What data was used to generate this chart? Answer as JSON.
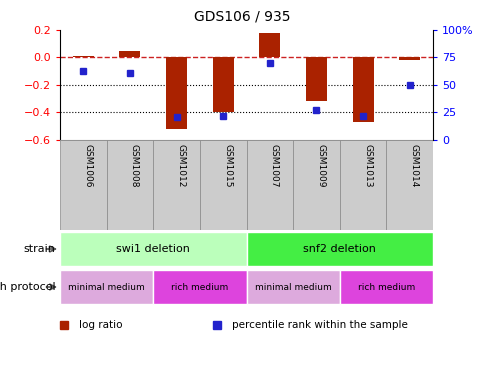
{
  "title": "GDS106 / 935",
  "samples": [
    "GSM1006",
    "GSM1008",
    "GSM1012",
    "GSM1015",
    "GSM1007",
    "GSM1009",
    "GSM1013",
    "GSM1014"
  ],
  "log_ratios": [
    0.01,
    0.05,
    -0.52,
    -0.4,
    0.18,
    -0.32,
    -0.47,
    -0.02
  ],
  "percentile_ranks": [
    0.63,
    0.61,
    0.21,
    0.22,
    0.7,
    0.27,
    0.22,
    0.5
  ],
  "ylim": [
    -0.6,
    0.2
  ],
  "yticks": [
    -0.6,
    -0.4,
    -0.2,
    0.0,
    0.2
  ],
  "y2lim": [
    0,
    100
  ],
  "y2ticks": [
    0,
    25,
    50,
    75,
    100
  ],
  "y2ticklabels": [
    "0",
    "25",
    "50",
    "75",
    "100%"
  ],
  "bar_color": "#aa2200",
  "dot_color": "#2222cc",
  "dashed_line_color": "#cc2222",
  "strain_labels": [
    {
      "label": "swi1 deletion",
      "start": 0,
      "end": 4,
      "color": "#bbffbb"
    },
    {
      "label": "snf2 deletion",
      "start": 4,
      "end": 8,
      "color": "#44ee44"
    }
  ],
  "protocol_labels": [
    {
      "label": "minimal medium",
      "start": 0,
      "end": 2,
      "color": "#ddaadd"
    },
    {
      "label": "rich medium",
      "start": 2,
      "end": 4,
      "color": "#dd44dd"
    },
    {
      "label": "minimal medium",
      "start": 4,
      "end": 6,
      "color": "#ddaadd"
    },
    {
      "label": "rich medium",
      "start": 6,
      "end": 8,
      "color": "#dd44dd"
    }
  ],
  "legend_items": [
    {
      "label": "log ratio",
      "color": "#aa2200"
    },
    {
      "label": "percentile rank within the sample",
      "color": "#2222cc"
    }
  ],
  "strain_row_label": "strain",
  "protocol_row_label": "growth protocol",
  "sample_box_color": "#cccccc",
  "sample_box_edge": "#888888"
}
